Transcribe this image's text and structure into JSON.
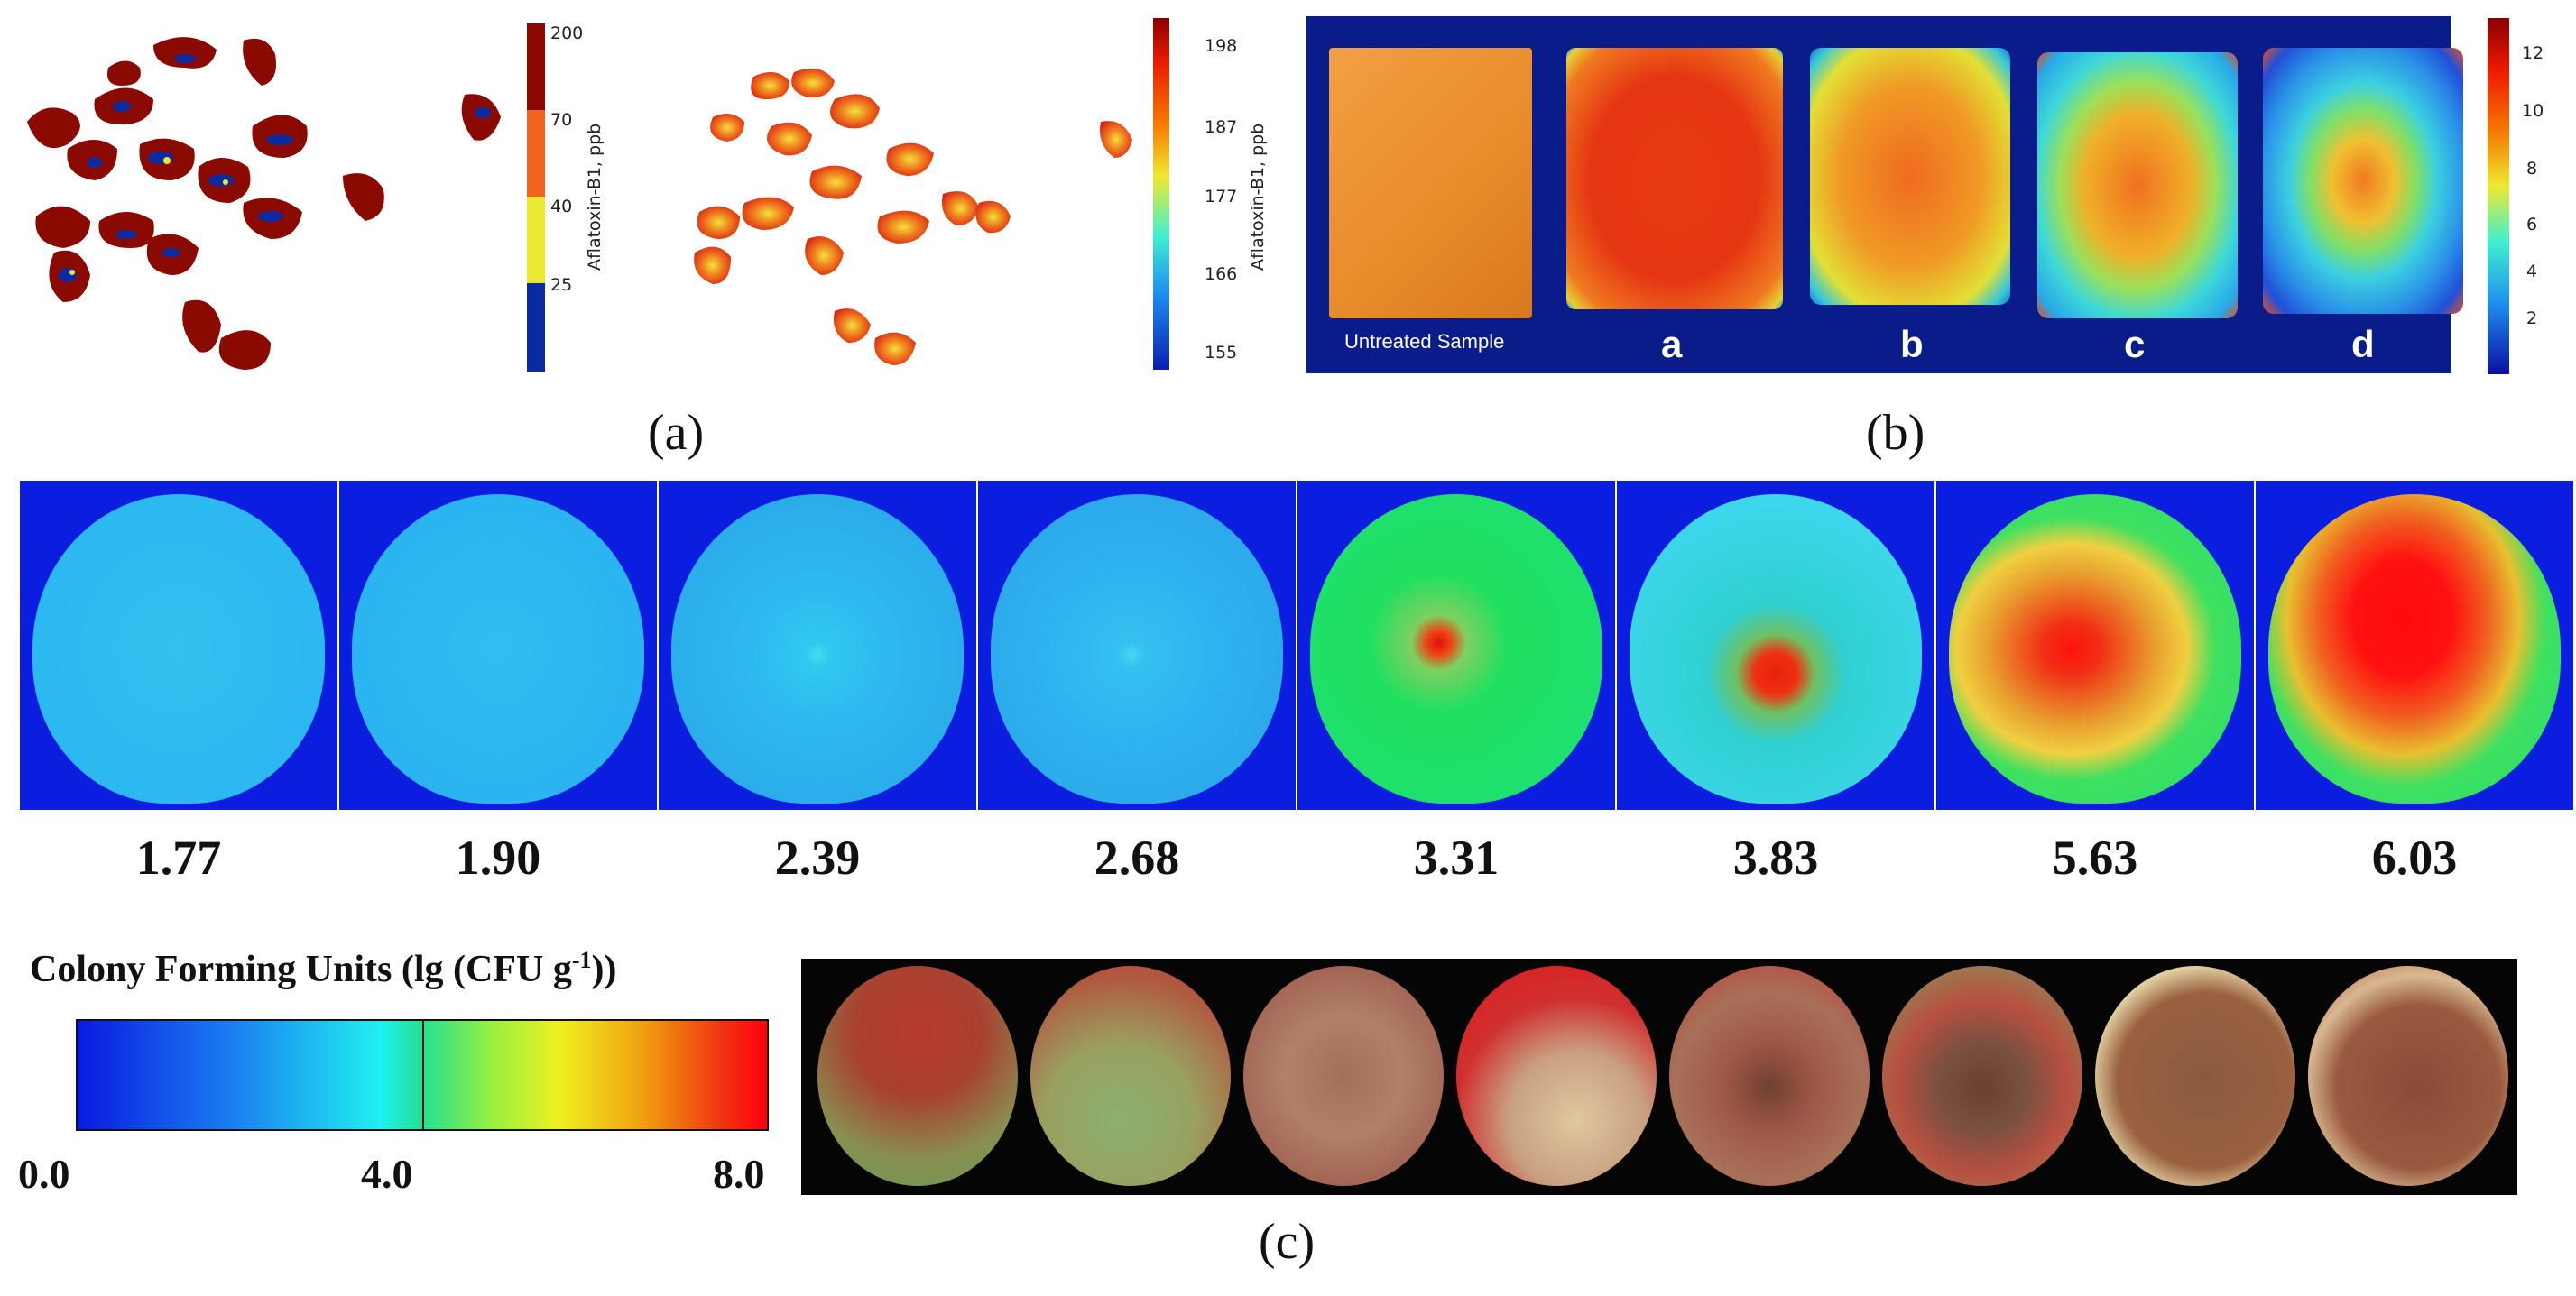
{
  "panel_a": {
    "label": "(a)",
    "colorbar_left": {
      "title": "Aflatoxin-B1, ppb",
      "ticks": [
        "200",
        "70",
        "40",
        "25"
      ],
      "colors": [
        "#8b0a00",
        "#f0641e",
        "#e8ea30",
        "#0a2aa0"
      ]
    },
    "colorbar_right": {
      "title": "Aflatoxin-B1, ppb",
      "ticks": [
        "198",
        "187",
        "177",
        "166",
        "155"
      ]
    }
  },
  "panel_b": {
    "label": "(b)",
    "untreated_label": "Untreated Sample",
    "samples": [
      "a",
      "b",
      "c",
      "d"
    ],
    "colorbar_ticks": [
      "12",
      "10",
      "8",
      "6",
      "4",
      "2"
    ]
  },
  "panel_c": {
    "label": "(c)",
    "cfu_values": [
      "1.77",
      "1.90",
      "2.39",
      "2.68",
      "3.31",
      "3.83",
      "5.63",
      "6.03"
    ],
    "scale_title_main": "Colony Forming Units (lg (CFU g",
    "scale_title_sup": "-1",
    "scale_title_end": "))",
    "scale_min": "0.0",
    "scale_mid": "4.0",
    "scale_max": "8.0"
  },
  "colors": {
    "hsi_background": "#0b1ee0",
    "panel_b_background": "#0a1c8a",
    "kernel": "#8b0a00"
  }
}
